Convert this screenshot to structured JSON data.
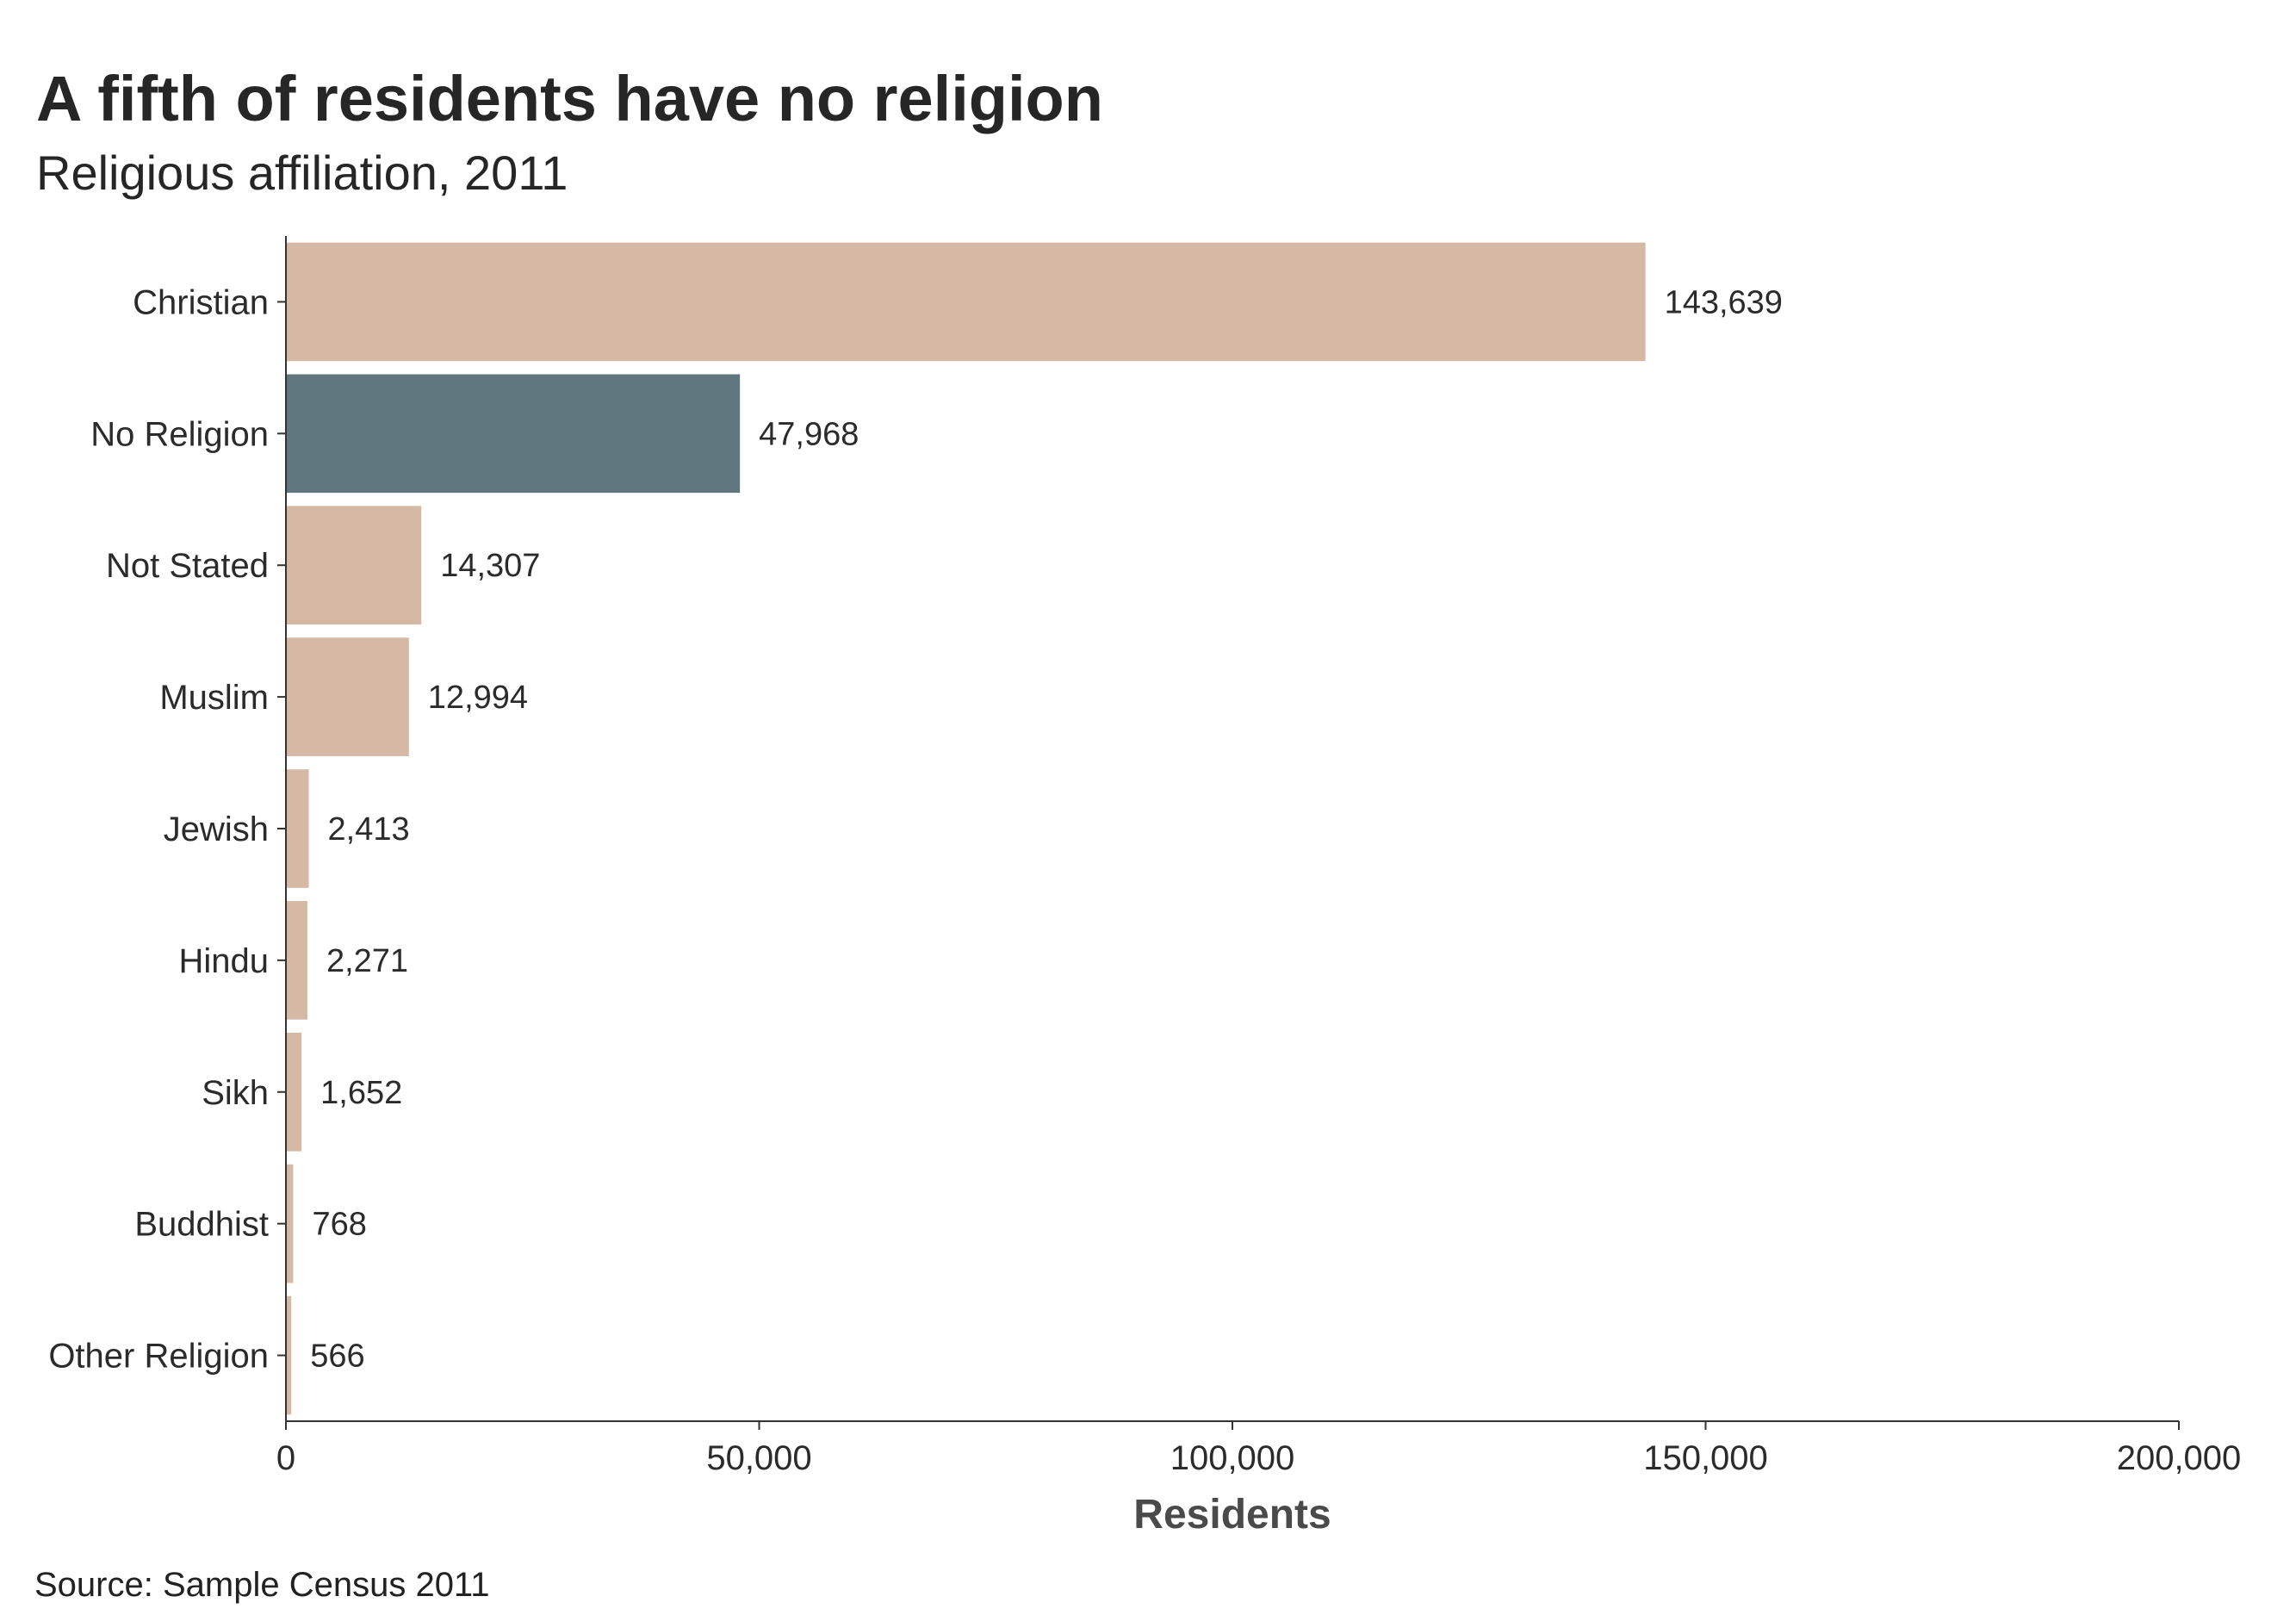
{
  "title": "A fifth of residents have no religion",
  "subtitle": "Religious affiliation, 2011",
  "source": "Source: Sample Census 2011",
  "colors": {
    "default_bar": "#d5b9a5",
    "highlight_bar": "#61777e",
    "axis": "#333333"
  },
  "chart_data": {
    "type": "bar",
    "orientation": "horizontal",
    "categories": [
      "Christian",
      "No Religion",
      "Not Stated",
      "Muslim",
      "Jewish",
      "Hindu",
      "Sikh",
      "Buddhist",
      "Other Religion"
    ],
    "values": [
      143639,
      47968,
      14307,
      12994,
      2413,
      2271,
      1652,
      768,
      566
    ],
    "value_labels": [
      "143,639",
      "47,968",
      "14,307",
      "12,994",
      "2,413",
      "2,271",
      "1,652",
      "768",
      "566"
    ],
    "highlight": "No Religion",
    "xlabel": "Residents",
    "ylabel": "",
    "xlim": [
      0,
      200000
    ],
    "x_ticks": [
      0,
      50000,
      100000,
      150000,
      200000
    ],
    "x_tick_labels": [
      "0",
      "50,000",
      "100,000",
      "150,000",
      "200,000"
    ],
    "grid": false,
    "legend": "none"
  }
}
